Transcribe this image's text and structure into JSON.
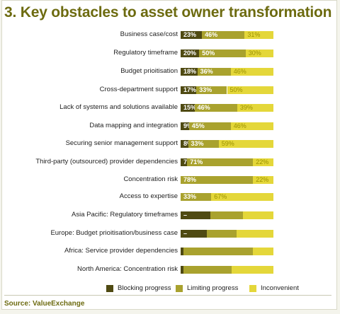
{
  "title": "3. Key obstacles to asset owner transformation",
  "source": "Source: ValueExchange",
  "colors": {
    "blocking": "#4f4a12",
    "limiting": "#a9a22e",
    "inconvenient": "#e4d73a"
  },
  "chart_data": {
    "type": "bar",
    "orientation": "horizontal",
    "stacked": true,
    "title": "3. Key obstacles to asset owner transformation",
    "xlim": [
      0,
      100
    ],
    "categories": [
      "Business case/cost",
      "Regulatory timeframe",
      "Budget prioitisation",
      "Cross-department support",
      "Lack of systems and solutions available",
      "Data mapping and integration",
      "Securing senior management support",
      "Third-party (outsourced) provider dependencies",
      "Concentration risk",
      "Access to expertise",
      "Asia Pacific: Regulatory timeframes",
      "Europe: Budget prioitisation/business case",
      "Africa: Service provider dependencies",
      "North America: Concentration risk"
    ],
    "series": [
      {
        "name": "Blocking progress",
        "values": [
          23,
          20,
          18,
          17,
          15,
          9,
          8,
          7,
          0,
          0,
          32,
          28,
          3,
          3
        ],
        "labels": [
          "23%",
          "20%",
          "18%",
          "17%",
          "15%",
          "9%",
          "8%",
          "7%",
          "",
          "",
          "–",
          "–",
          "!",
          "!"
        ]
      },
      {
        "name": "Limiting progress",
        "values": [
          46,
          50,
          36,
          33,
          46,
          45,
          33,
          71,
          78,
          33,
          35,
          32,
          75,
          52
        ],
        "labels": [
          "46%",
          "50%",
          "36%",
          "33%",
          "46%",
          "45%",
          "33%",
          "71%",
          "78%",
          "33%",
          "",
          "",
          "",
          ""
        ]
      },
      {
        "name": "Inconvenient",
        "values": [
          31,
          30,
          46,
          50,
          39,
          46,
          59,
          22,
          22,
          67,
          33,
          40,
          22,
          45
        ],
        "labels": [
          "31%",
          "30%",
          "46%",
          "50%",
          "39%",
          "46%",
          "59%",
          "22%",
          "22%",
          "67%",
          "",
          "",
          "",
          ""
        ]
      }
    ],
    "legend": {
      "position": "bottom",
      "entries": [
        "Blocking progress",
        "Limiting progress",
        "Inconvenient"
      ]
    }
  }
}
